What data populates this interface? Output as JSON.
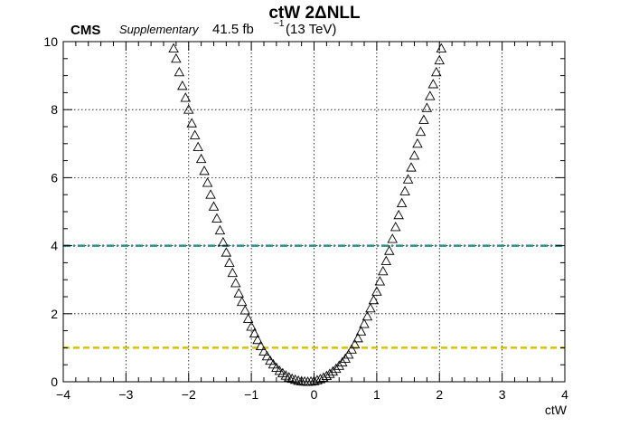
{
  "header": {
    "title": "ctW 2ΔNLL",
    "experiment": "CMS",
    "tag": "Supplementary",
    "lumi_main": "41.5 fb",
    "lumi_exp": "−1",
    "lumi_energy": "(13 TeV)"
  },
  "chart_data": {
    "type": "scatter",
    "title": "ctW 2ΔNLL",
    "xlabel": "ctW",
    "ylabel": "",
    "xlim": [
      -4,
      4
    ],
    "ylim": [
      0,
      10
    ],
    "x_ticks": [
      "−4",
      "−3",
      "−2",
      "−1",
      "0",
      "1",
      "2",
      "3",
      "4"
    ],
    "y_ticks": [
      "0",
      "2",
      "4",
      "6",
      "8",
      "10"
    ],
    "grid": true,
    "marker": "open-triangle",
    "reference_lines": [
      {
        "y": 1,
        "style": "dashed",
        "color": "#d4c400"
      },
      {
        "y": 4,
        "style": "dash-dot",
        "color": "#2e8b8b"
      }
    ],
    "points": {
      "x": [
        -2.24,
        -2.2,
        -2.15,
        -2.1,
        -2.05,
        -2.0,
        -1.95,
        -1.9,
        -1.85,
        -1.8,
        -1.75,
        -1.7,
        -1.65,
        -1.6,
        -1.55,
        -1.5,
        -1.45,
        -1.4,
        -1.35,
        -1.3,
        -1.25,
        -1.2,
        -1.15,
        -1.1,
        -1.05,
        -1.0,
        -0.95,
        -0.9,
        -0.85,
        -0.8,
        -0.75,
        -0.7,
        -0.65,
        -0.6,
        -0.55,
        -0.5,
        -0.45,
        -0.4,
        -0.35,
        -0.3,
        -0.25,
        -0.2,
        -0.15,
        -0.1,
        -0.05,
        0.0,
        0.05,
        0.1,
        0.15,
        0.2,
        0.25,
        0.3,
        0.35,
        0.4,
        0.45,
        0.5,
        0.55,
        0.6,
        0.65,
        0.7,
        0.75,
        0.8,
        0.85,
        0.9,
        0.95,
        1.0,
        1.05,
        1.1,
        1.15,
        1.2,
        1.25,
        1.3,
        1.35,
        1.4,
        1.45,
        1.5,
        1.55,
        1.6,
        1.65,
        1.7,
        1.75,
        1.8,
        1.85,
        1.9,
        1.95,
        2.0,
        2.03
      ],
      "y": [
        9.8,
        9.5,
        9.1,
        8.7,
        8.35,
        8.0,
        7.6,
        7.25,
        6.9,
        6.55,
        6.2,
        5.85,
        5.5,
        5.15,
        4.8,
        4.45,
        4.1,
        3.8,
        3.5,
        3.2,
        2.9,
        2.6,
        2.35,
        2.1,
        1.85,
        1.62,
        1.42,
        1.23,
        1.05,
        0.89,
        0.75,
        0.62,
        0.51,
        0.41,
        0.32,
        0.25,
        0.18,
        0.13,
        0.09,
        0.06,
        0.03,
        0.015,
        0.005,
        0.0,
        0.005,
        0.02,
        0.045,
        0.08,
        0.12,
        0.17,
        0.23,
        0.3,
        0.38,
        0.47,
        0.57,
        0.68,
        0.8,
        0.95,
        1.1,
        1.28,
        1.48,
        1.7,
        1.92,
        2.16,
        2.4,
        2.65,
        2.95,
        3.25,
        3.55,
        3.85,
        4.2,
        4.55,
        4.9,
        5.25,
        5.6,
        5.95,
        6.3,
        6.65,
        7.0,
        7.35,
        7.7,
        8.05,
        8.4,
        8.75,
        9.1,
        9.45,
        9.8
      ]
    }
  }
}
